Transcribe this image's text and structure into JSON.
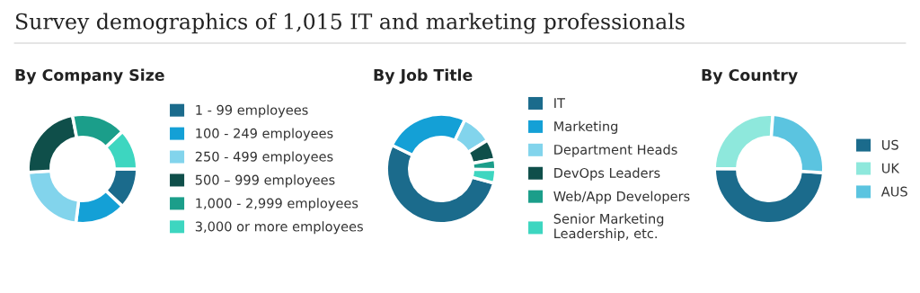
{
  "chart_data": [
    {
      "type": "donut",
      "title": "By Company Size",
      "annotations": [
        "Survey demographics of 1,015 IT and marketing professionals"
      ],
      "legend": "right",
      "categories": [
        "1 - 99 employees",
        "100 - 249 employees",
        "250 - 499 employees",
        "500 – 999 employees",
        "1,000 - 2,999 employees",
        "3,000 or more employees"
      ],
      "values": [
        12,
        15,
        22,
        23,
        16,
        12
      ],
      "colors": [
        "#1b6b8c",
        "#14a0d6",
        "#82d4ec",
        "#0f4f4a",
        "#1b9e8a",
        "#3dd6c0"
      ]
    },
    {
      "type": "donut",
      "title": "By Job Title",
      "legend": "right",
      "categories": [
        "IT",
        "Marketing",
        "Department Heads",
        "DevOps Leaders",
        "Web/App Developers",
        "Senior Marketing Leadership, etc."
      ],
      "values": [
        53,
        25,
        9,
        6,
        3,
        4
      ],
      "colors": [
        "#1b6b8c",
        "#14a0d6",
        "#82d4ec",
        "#0f4f4a",
        "#1b9e8a",
        "#3dd6c0"
      ]
    },
    {
      "type": "donut",
      "title": "By Country",
      "legend": "right",
      "categories": [
        "US",
        "UK",
        "AUS"
      ],
      "values": [
        49,
        26,
        25
      ],
      "colors": [
        "#1b6b8c",
        "#8ee8dc",
        "#5bc4e0"
      ]
    }
  ]
}
